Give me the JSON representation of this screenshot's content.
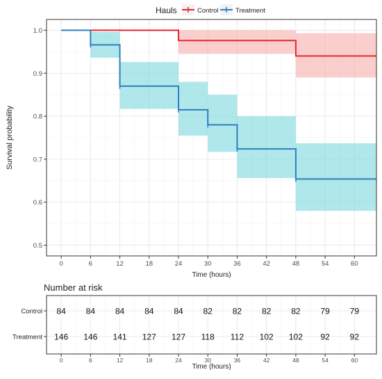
{
  "legend": {
    "title": "Hauls",
    "placement": "top",
    "items": [
      {
        "label": "Control",
        "color": "#e8262b"
      },
      {
        "label": "Treatment",
        "color": "#2c7fc0"
      }
    ]
  },
  "chart_data": [
    {
      "type": "line",
      "subtype": "kaplan-meier-step",
      "xlabel": "Time (hours)",
      "ylabel": "Survival probability",
      "xlim": [
        -3,
        64.5
      ],
      "ylim": [
        0.475,
        1.025
      ],
      "xticks": [
        0,
        6,
        12,
        18,
        24,
        30,
        36,
        42,
        48,
        54,
        60
      ],
      "yticks": [
        0.5,
        0.6,
        0.7,
        0.8,
        0.9,
        1.0
      ],
      "ytick_labels": [
        "0.5",
        "0.6",
        "0.7",
        "0.8",
        "0.9",
        "1.0"
      ],
      "grid": true,
      "series": [
        {
          "name": "Control",
          "color": "#e8262b",
          "band_color": "#f8b0b0",
          "x_end": 64.5,
          "steps": [
            {
              "x": 0,
              "y": 1.0,
              "lower": 1.0,
              "upper": 1.0
            },
            {
              "x": 24,
              "y": 0.976,
              "lower": 0.945,
              "upper": 1.0
            },
            {
              "x": 48,
              "y": 0.94,
              "lower": 0.89,
              "upper": 0.993
            }
          ],
          "censor_x": []
        },
        {
          "name": "Treatment",
          "color": "#2c7fc0",
          "band_color": "#7fd9de",
          "x_end": 64.5,
          "steps": [
            {
              "x": 0,
              "y": 1.0,
              "lower": 1.0,
              "upper": 1.0
            },
            {
              "x": 6,
              "y": 0.966,
              "lower": 0.936,
              "upper": 0.996
            },
            {
              "x": 12,
              "y": 0.87,
              "lower": 0.817,
              "upper": 0.926
            },
            {
              "x": 24,
              "y": 0.815,
              "lower": 0.755,
              "upper": 0.88
            },
            {
              "x": 30,
              "y": 0.78,
              "lower": 0.717,
              "upper": 0.85
            },
            {
              "x": 36,
              "y": 0.724,
              "lower": 0.656,
              "upper": 0.8
            },
            {
              "x": 48,
              "y": 0.654,
              "lower": 0.58,
              "upper": 0.737
            }
          ],
          "censor_x": [
            6,
            12,
            24,
            30,
            36,
            48
          ]
        }
      ]
    },
    {
      "type": "table",
      "title": "Number at risk",
      "xlabel": "Time (hours)",
      "xlim": [
        -3,
        64.5
      ],
      "xticks": [
        0,
        6,
        12,
        18,
        24,
        30,
        36,
        42,
        48,
        54,
        60
      ],
      "rows": [
        {
          "name": "Control",
          "values": [
            84,
            84,
            84,
            84,
            84,
            82,
            82,
            82,
            82,
            79,
            79
          ]
        },
        {
          "name": "Treatment",
          "values": [
            146,
            146,
            141,
            127,
            127,
            118,
            112,
            102,
            102,
            92,
            92
          ]
        }
      ]
    }
  ]
}
